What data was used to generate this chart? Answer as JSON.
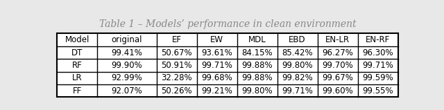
{
  "title": "Table 1 – Models’ performance in clean environment",
  "columns": [
    "Model",
    "original",
    "EF",
    "EW",
    "MDL",
    "EBD",
    "EN-LR",
    "EN-RF"
  ],
  "rows": [
    [
      "DT",
      "99.41%",
      "50.67%",
      "93.61%",
      "84.15%",
      "85.42%",
      "96.27%",
      "96.30%"
    ],
    [
      "RF",
      "99.90%",
      "50.91%",
      "99.71%",
      "99.88%",
      "99.80%",
      "99.70%",
      "99.71%"
    ],
    [
      "LR",
      "92.99%",
      "32.28%",
      "99.68%",
      "99.88%",
      "99.82%",
      "99.67%",
      "99.59%"
    ],
    [
      "FF",
      "92.07%",
      "50.26%",
      "99.21%",
      "99.80%",
      "99.71%",
      "99.60%",
      "99.55%"
    ]
  ],
  "background_color": "#e8e8e8",
  "table_bg": "#ffffff",
  "border_color": "#000000",
  "title_fontsize": 10,
  "cell_fontsize": 8.5,
  "title_color": "#888888",
  "col_widths_raw": [
    0.85,
    1.25,
    0.85,
    0.85,
    0.85,
    0.85,
    0.85,
    0.85
  ]
}
